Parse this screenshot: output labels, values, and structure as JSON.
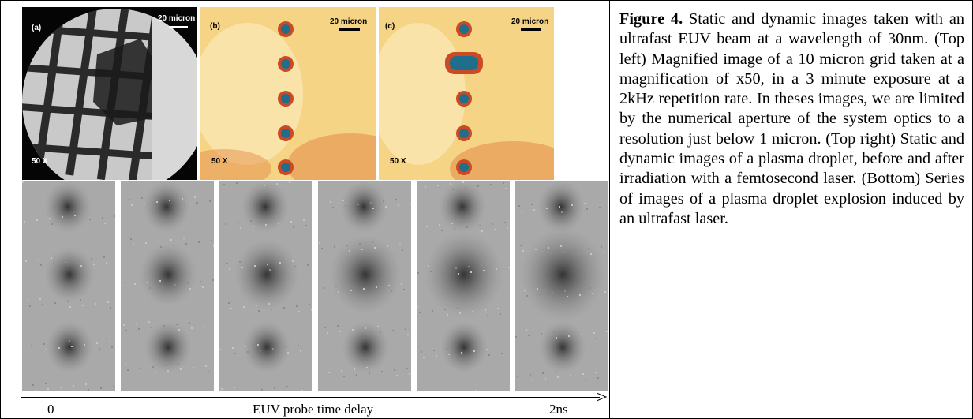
{
  "figure": {
    "caption_label": "Figure 4.",
    "caption_text": "Static and dynamic images taken with an ultrafast EUV beam at a wavelength of 30nm. (Top left) Magnified image of a 10 micron grid taken at a magnification of x50, in a 3 minute exposure at a 2kHz repetition rate. In theses images, we are limited by the numerical aperture of the system optics to a resolution just below 1 micron. (Top right) Static and dynamic images of a plasma droplet, before and after irradiation with a femtosecond laser. (Bottom) Series of images of a plasma droplet explosion induced by an ultrafast laser."
  },
  "panels": {
    "a": {
      "letter": "(a)",
      "scale": "20 micron",
      "mag": "50 X"
    },
    "b": {
      "letter": "(b)",
      "scale": "20 micron",
      "mag": "50 X"
    },
    "c": {
      "letter": "(c)",
      "scale": "20 micron",
      "mag": "50 X"
    }
  },
  "axis": {
    "start": "0",
    "label": "EUV probe time delay",
    "end": "2ns"
  },
  "colors": {
    "grey_bg": "#a8a8a8",
    "heat_bg": "#f6d486",
    "droplet_core": "#1f6e8c"
  }
}
